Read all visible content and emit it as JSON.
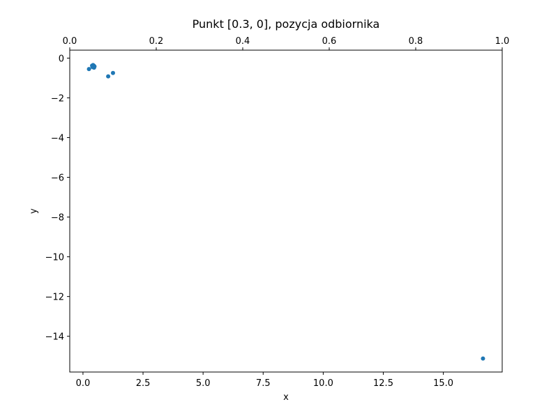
{
  "chart_data": {
    "type": "scatter",
    "title": "Punkt [0.3, 0], pozycja odbiornika",
    "xlabel": "x",
    "ylabel": "y",
    "xlim": [
      -0.55,
      17.45
    ],
    "ylim": [
      -15.8,
      0.4
    ],
    "x_ticks": [
      0.0,
      2.5,
      5.0,
      7.5,
      10.0,
      12.5,
      15.0
    ],
    "x_tick_labels": [
      "0.0",
      "2.5",
      "5.0",
      "7.5",
      "10.0",
      "12.5",
      "15.0"
    ],
    "y_ticks": [
      0,
      -2,
      -4,
      -6,
      -8,
      -10,
      -12,
      -14
    ],
    "y_tick_labels": [
      "0",
      "−2",
      "−4",
      "−6",
      "−8",
      "−10",
      "−12",
      "−14"
    ],
    "top_axis": {
      "lim": [
        0,
        1
      ],
      "ticks": [
        0.0,
        0.2,
        0.4,
        0.6,
        0.8,
        1.0
      ],
      "tick_labels": [
        "0.0",
        "0.2",
        "0.4",
        "0.6",
        "0.8",
        "1.0"
      ]
    },
    "grid": false,
    "series": [
      {
        "color": "#1f77b4",
        "points": [
          {
            "x": 0.25,
            "y": -0.55
          },
          {
            "x": 0.38,
            "y": -0.38
          },
          {
            "x": 0.42,
            "y": -0.35
          },
          {
            "x": 0.45,
            "y": -0.38
          },
          {
            "x": 0.48,
            "y": -0.42
          },
          {
            "x": 0.46,
            "y": -0.48
          },
          {
            "x": 0.4,
            "y": -0.45
          },
          {
            "x": 1.05,
            "y": -0.92
          },
          {
            "x": 1.25,
            "y": -0.75
          },
          {
            "x": 16.65,
            "y": -15.12
          }
        ]
      }
    ]
  }
}
